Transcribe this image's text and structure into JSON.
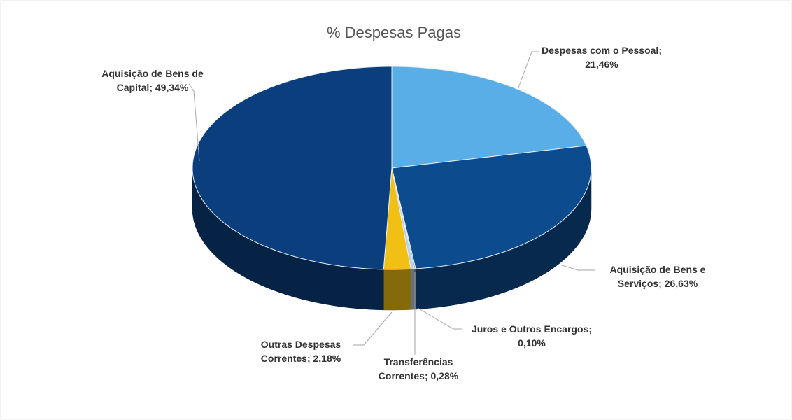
{
  "chart_data": {
    "type": "pie3d",
    "title": "% Despesas Pagas",
    "categories": [
      "Despesas com o Pessoal",
      "Aquisição de Bens e Serviços",
      "Juros e Outros Encargos",
      "Transferências Correntes",
      "Outras Despesas Correntes",
      "Aquisição de Bens de Capital"
    ],
    "values": [
      21.46,
      26.63,
      0.1,
      0.28,
      2.18,
      49.34
    ],
    "value_labels": [
      "21,46%",
      "26,63%",
      "0,10%",
      "0,28%",
      "2,18%",
      "49,34%"
    ],
    "label_separator": ";",
    "colors": [
      "#5aaee8",
      "#0c4b8e",
      "#6aa6d6",
      "#b8cfe2",
      "#f2c014",
      "#0b3e7c"
    ]
  }
}
